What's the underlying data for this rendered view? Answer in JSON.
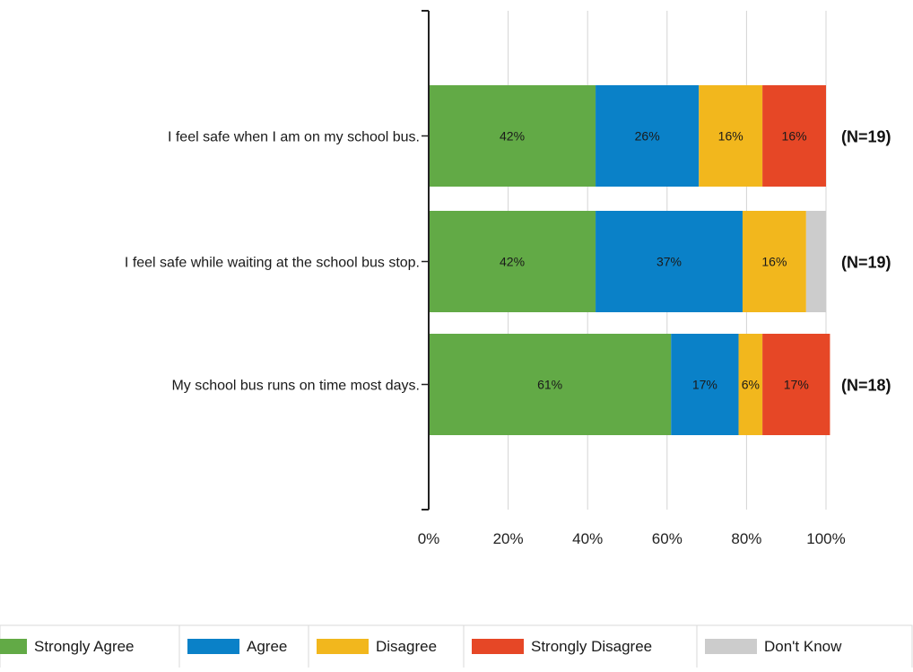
{
  "chart_data": {
    "type": "bar",
    "orientation": "horizontal",
    "stacked": true,
    "categories": [
      "I feel safe when I am on my school bus.",
      "I feel safe while waiting at the school bus stop.",
      "My school bus runs on time most days."
    ],
    "series": [
      {
        "name": "Strongly Agree",
        "color": "#62aa46",
        "values": [
          42,
          42,
          61
        ],
        "labels": [
          "42%",
          "42%",
          "61%"
        ]
      },
      {
        "name": "Agree",
        "color": "#0a81c8",
        "values": [
          26,
          37,
          17
        ],
        "labels": [
          "26%",
          "37%",
          "17%"
        ]
      },
      {
        "name": "Disagree",
        "color": "#f2b71d",
        "values": [
          16,
          16,
          6
        ],
        "labels": [
          "16%",
          "16%",
          "6%"
        ]
      },
      {
        "name": "Strongly Disagree",
        "color": "#e64726",
        "values": [
          16,
          0,
          17
        ],
        "labels": [
          "16%",
          "",
          "17%"
        ]
      },
      {
        "name": "Don't Know",
        "color": "#cccccc",
        "values": [
          0,
          5,
          0
        ],
        "labels": [
          "",
          "",
          ""
        ]
      }
    ],
    "row_annotations": [
      "(N=19)",
      "(N=19)",
      "(N=18)"
    ],
    "xlim": [
      0,
      100
    ],
    "x_ticks": [
      "0%",
      "20%",
      "40%",
      "60%",
      "80%",
      "100%"
    ],
    "grid": true,
    "legend_position": "bottom",
    "title": "",
    "xlabel": "",
    "ylabel": ""
  }
}
